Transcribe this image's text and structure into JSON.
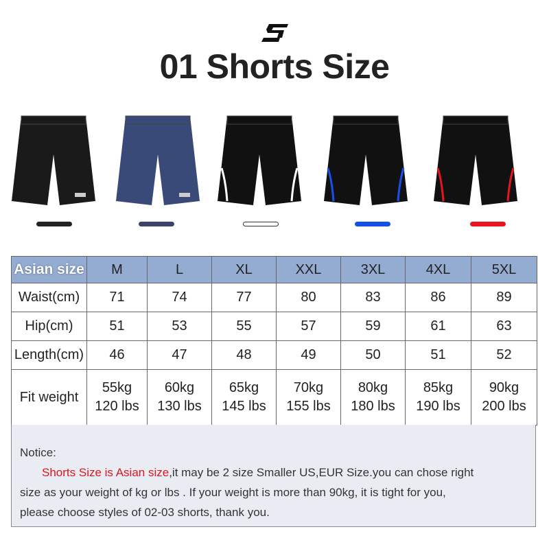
{
  "logo_text": "S",
  "title": "01 Shorts Size",
  "products": [
    {
      "color_name": "black",
      "color": "#1a1a1a",
      "stripe": null,
      "swatch": "#222222"
    },
    {
      "color_name": "navy",
      "color": "#3a4a78",
      "stripe": null,
      "swatch": "#3b4466"
    },
    {
      "color_name": "black-white",
      "color": "#111111",
      "stripe": "#ffffff",
      "swatch": "#ffffff"
    },
    {
      "color_name": "black-blue",
      "color": "#111111",
      "stripe": "#1a4ff0",
      "swatch": "#1450e6"
    },
    {
      "color_name": "black-red",
      "color": "#111111",
      "stripe": "#e8141e",
      "swatch": "#e8141e"
    }
  ],
  "table": {
    "header": [
      "Asian size",
      "M",
      "L",
      "XL",
      "XXL",
      "3XL",
      "4XL",
      "5XL"
    ],
    "rows": [
      [
        "Waist(cm)",
        "71",
        "74",
        "77",
        "80",
        "83",
        "86",
        "89"
      ],
      [
        "Hip(cm)",
        "51",
        "53",
        "55",
        "57",
        "59",
        "61",
        "63"
      ],
      [
        "Length(cm)",
        "46",
        "47",
        "48",
        "49",
        "50",
        "51",
        "52"
      ]
    ],
    "weight_label": "Fit weight",
    "weights": [
      [
        "55kg",
        "120 lbs"
      ],
      [
        "60kg",
        "130 lbs"
      ],
      [
        "65kg",
        "145 lbs"
      ],
      [
        "70kg",
        "155 lbs"
      ],
      [
        "80kg",
        "180 lbs"
      ],
      [
        "85kg",
        "190 lbs"
      ],
      [
        "90kg",
        "200 lbs"
      ]
    ]
  },
  "notice": {
    "label": "Notice:",
    "highlight": "Shorts Size is Asian size",
    "text1": ",it may be 2 size Smaller US,EUR Size.you can chose right",
    "text2": "size as your weight of kg or lbs . If your weight is more than 90kg, it is tight for you,",
    "text3": "please choose styles of 02-03 shorts, thank you."
  },
  "colors": {
    "header_bg": "#95acd2",
    "notice_bg": "#e9edf3",
    "highlight": "#e0141e"
  }
}
